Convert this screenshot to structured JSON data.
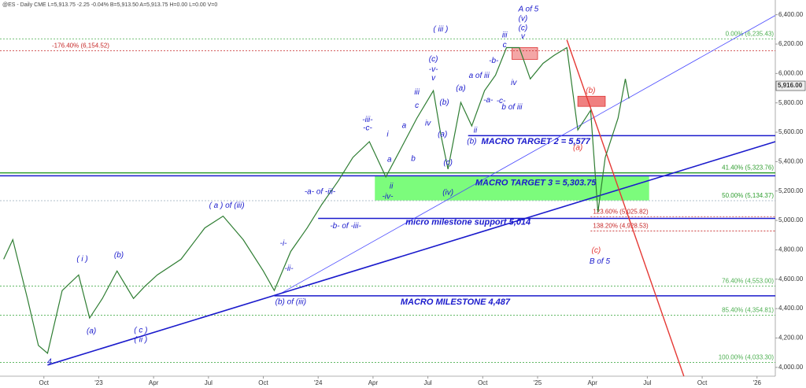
{
  "chart_data": {
    "type": "line",
    "header": "@ES - Daily CME  L=5,913.75 -2.25 -0.04% B=5,913.50 A=5,913.75 H=0.00 L=0.00 V=0",
    "x": [
      -2.2,
      -1.7,
      -0.9,
      -0.3,
      0.2,
      1.0,
      1.9,
      2.5,
      3.2,
      4.0,
      4.9,
      5.5,
      6.2,
      7.5,
      8.8,
      9.8,
      10.9,
      12.0,
      12.6,
      13.5,
      14.4,
      15.2,
      16.1,
      16.9,
      17.8,
      18.7,
      19.5,
      20.4,
      21.3,
      21.7,
      22.1,
      22.8,
      23.4,
      24.1,
      24.7,
      25.3,
      26.0,
      26.6,
      27.3,
      27.9,
      28.6,
      29.2,
      29.9,
      30.3,
      30.7,
      31.4,
      31.8,
      32.0
    ],
    "series": [
      {
        "name": "ES",
        "color": "#2e7d32",
        "values": [
          4736,
          4869,
          4469,
          4149,
          4096,
          4523,
          4629,
          4336,
          4469,
          4656,
          4469,
          4549,
          4629,
          4736,
          4949,
          5029,
          4869,
          4656,
          4523,
          4789,
          4949,
          5109,
          5269,
          5429,
          5536,
          5296,
          5483,
          5696,
          5883,
          5589,
          5349,
          5803,
          5643,
          5883,
          5989,
          6176,
          6176,
          5963,
          6069,
          6123,
          6176,
          5616,
          5749,
          5056,
          5429,
          5696,
          5963,
          5829
        ]
      }
    ],
    "last_price": {
      "value": 5916,
      "label": "5,916.00"
    },
    "xlim": [
      -2.4,
      40
    ],
    "ylim": [
      3940,
      6500
    ],
    "xticks": [
      {
        "value": 0,
        "label": "Oct"
      },
      {
        "value": 3,
        "label": "'23"
      },
      {
        "value": 6,
        "label": "Apr"
      },
      {
        "value": 9,
        "label": "Jul"
      },
      {
        "value": 12,
        "label": "Oct"
      },
      {
        "value": 15,
        "label": "'24"
      },
      {
        "value": 18,
        "label": "Apr"
      },
      {
        "value": 21,
        "label": "Jul"
      },
      {
        "value": 24,
        "label": "Oct"
      },
      {
        "value": 27,
        "label": "'25"
      },
      {
        "value": 30,
        "label": "Apr"
      },
      {
        "value": 33,
        "label": "Jul"
      },
      {
        "value": 36,
        "label": "Oct"
      },
      {
        "value": 39,
        "label": "'26"
      }
    ],
    "yticks": [
      {
        "value": 4000,
        "label": "4,000.00"
      },
      {
        "value": 4200,
        "label": "4,200.00"
      },
      {
        "value": 4400,
        "label": "4,400.00"
      },
      {
        "value": 4600,
        "label": "4,600.00"
      },
      {
        "value": 4800,
        "label": "4,800.00"
      },
      {
        "value": 5000,
        "label": "5,000.00"
      },
      {
        "value": 5200,
        "label": "5,200.00"
      },
      {
        "value": 5400,
        "label": "5,400.00"
      },
      {
        "value": 5600,
        "label": "5,600.00"
      },
      {
        "value": 5800,
        "label": "5,800.00"
      },
      {
        "value": 6000,
        "label": "6,000.00"
      },
      {
        "value": 6200,
        "label": "6,200.00"
      },
      {
        "value": 6400,
        "label": "6,400.00"
      }
    ],
    "zones": [
      {
        "x0": 18.1,
        "x1": 33.1,
        "y0": 5136,
        "y1": 5301,
        "color": "#7CFC7C"
      },
      {
        "x0": 25.6,
        "x1": 27.0,
        "y0": 6096,
        "y1": 6176,
        "color": "#f4a6a6"
      },
      {
        "x0": 29.2,
        "x1": 30.7,
        "y0": 5776,
        "y1": 5845,
        "color": "#f08080"
      }
    ],
    "levels": [
      {
        "value": 6235.43,
        "label": "0.00% (6,235.43)",
        "color": "#4caf50",
        "dash": true,
        "x0": -2.4,
        "side": "right"
      },
      {
        "value": 6154.52,
        "label": "-176.40% (6,154.52)",
        "color": "#c62828",
        "dash": true,
        "x0": -2.4,
        "side": "left"
      },
      {
        "value": 5577,
        "color": "#1a1acc",
        "dash": false,
        "x0": 23.2
      },
      {
        "value": 5323.76,
        "label": "41.40% (5,323.76)",
        "color": "#2e9d2e",
        "dash": false,
        "x0": -2.4,
        "side": "right"
      },
      {
        "value": 5303.75,
        "color": "#1a1acc",
        "dash": false,
        "x0": -2.4
      },
      {
        "value": 5134.37,
        "label": "50.00% (5,134.37)",
        "color": "#9ab",
        "dash": true,
        "x0": -2.4,
        "side": "right"
      },
      {
        "value": 5025.82,
        "label": "123.60% (5,025.82)",
        "color": "#c62828",
        "dash": true,
        "x0": 29.9,
        "side": "mid"
      },
      {
        "value": 5014,
        "color": "#1a1acc",
        "dash": false,
        "x0": 15.0
      },
      {
        "value": 4928.53,
        "label": "138.20% (4,928.53)",
        "color": "#c62828",
        "dash": true,
        "x0": 29.9,
        "side": "mid"
      },
      {
        "value": 4553,
        "label": "76.40% (4,553.00)",
        "color": "#4caf50",
        "dash": true,
        "x0": -2.4,
        "side": "right"
      },
      {
        "value": 4487,
        "color": "#1a1acc",
        "dash": false,
        "x0": 12.6
      },
      {
        "value": 4354.81,
        "label": "85.40% (4,354.81)",
        "color": "#4caf50",
        "dash": true,
        "x0": -2.4,
        "side": "right"
      },
      {
        "value": 4033.3,
        "label": "100.00% (4,033.30)",
        "color": "#4caf50",
        "dash": true,
        "x0": -2.4,
        "side": "right"
      }
    ],
    "trendlines": [
      {
        "x0": 12.85,
        "y0": 4496,
        "x1": 40,
        "y1": 6395,
        "color": "#4a4aff",
        "width": 0.8
      },
      {
        "x0": 0.2,
        "y0": 4016,
        "x1": 40,
        "y1": 5536,
        "color": "#1a1acc",
        "width": 1.6
      },
      {
        "x0": 28.6,
        "y0": 6229,
        "x1": 35.0,
        "y1": 3940,
        "color": "#e53935",
        "width": 1.4
      }
    ],
    "annotations": [
      {
        "text": "4",
        "x": 0.3,
        "y": 4037,
        "color": "#1a1acc"
      },
      {
        "text": "( i )",
        "x": 2.1,
        "y": 4736,
        "color": "#1a1acc"
      },
      {
        "text": "(a)",
        "x": 2.6,
        "y": 4245,
        "color": "#1a1acc"
      },
      {
        "text": "(b)",
        "x": 4.1,
        "y": 4763,
        "color": "#1a1acc"
      },
      {
        "text": "( c )",
        "x": 5.3,
        "y": 4251,
        "color": "#1a1acc"
      },
      {
        "text": "( ii )",
        "x": 5.3,
        "y": 4187,
        "color": "#1a1acc"
      },
      {
        "text": "( a ) of (iii)",
        "x": 10.0,
        "y": 5099,
        "color": "#1a1acc"
      },
      {
        "text": "-i-",
        "x": 13.1,
        "y": 4843,
        "color": "#1a1acc"
      },
      {
        "text": "-ii-",
        "x": 13.4,
        "y": 4672,
        "color": "#1a1acc"
      },
      {
        "text": "(b) of (iii)",
        "x": 13.5,
        "y": 4443,
        "color": "#1a1acc"
      },
      {
        "text": "-a- of -iii-",
        "x": 15.1,
        "y": 5195,
        "color": "#1a1acc"
      },
      {
        "text": "-b- of -iii-",
        "x": 16.5,
        "y": 4960,
        "color": "#1a1acc"
      },
      {
        "text": "-iii-",
        "x": 17.7,
        "y": 5685,
        "color": "#1a1acc"
      },
      {
        "text": "-c-",
        "x": 17.7,
        "y": 5627,
        "color": "#1a1acc"
      },
      {
        "text": "i",
        "x": 18.8,
        "y": 5584,
        "color": "#1a1acc"
      },
      {
        "text": "a",
        "x": 18.9,
        "y": 5413,
        "color": "#1a1acc"
      },
      {
        "text": "ii",
        "x": 19.0,
        "y": 5232,
        "color": "#1a1acc"
      },
      {
        "text": "-iv-",
        "x": 18.8,
        "y": 5163,
        "color": "#1a1acc"
      },
      {
        "text": "a",
        "x": 19.7,
        "y": 5643,
        "color": "#1a1acc"
      },
      {
        "text": "b",
        "x": 20.2,
        "y": 5419,
        "color": "#1a1acc"
      },
      {
        "text": "iii",
        "x": 20.4,
        "y": 5872,
        "color": "#1a1acc"
      },
      {
        "text": "c",
        "x": 20.4,
        "y": 5781,
        "color": "#1a1acc"
      },
      {
        "text": "iv",
        "x": 21.0,
        "y": 5659,
        "color": "#1a1acc"
      },
      {
        "text": "( iii )",
        "x": 21.7,
        "y": 6299,
        "color": "#1a1acc"
      },
      {
        "text": "(c)",
        "x": 21.3,
        "y": 6096,
        "color": "#1a1acc"
      },
      {
        "text": "-v-",
        "x": 21.3,
        "y": 6027,
        "color": "#1a1acc"
      },
      {
        "text": "v",
        "x": 21.3,
        "y": 5968,
        "color": "#1a1acc"
      },
      {
        "text": "(a)",
        "x": 21.8,
        "y": 5584,
        "color": "#1a1acc"
      },
      {
        "text": "(b)",
        "x": 21.9,
        "y": 5803,
        "color": "#1a1acc"
      },
      {
        "text": "(c)",
        "x": 22.1,
        "y": 5392,
        "color": "#1a1acc"
      },
      {
        "text": "(iv)",
        "x": 22.1,
        "y": 5189,
        "color": "#1a1acc"
      },
      {
        "text": "(a)",
        "x": 22.8,
        "y": 5899,
        "color": "#1a1acc"
      },
      {
        "text": "(b)",
        "x": 23.4,
        "y": 5536,
        "color": "#1a1acc"
      },
      {
        "text": "ii",
        "x": 23.6,
        "y": 5611,
        "color": "#1a1acc"
      },
      {
        "text": "a of iii",
        "x": 23.8,
        "y": 5984,
        "color": "#1a1acc"
      },
      {
        "text": "-a-",
        "x": 24.3,
        "y": 5819,
        "color": "#1a1acc"
      },
      {
        "text": "-b-",
        "x": 24.6,
        "y": 6085,
        "color": "#1a1acc"
      },
      {
        "text": "-c-",
        "x": 25.0,
        "y": 5813,
        "color": "#1a1acc"
      },
      {
        "text": "b of iii",
        "x": 25.6,
        "y": 5771,
        "color": "#1a1acc"
      },
      {
        "text": "iii",
        "x": 25.2,
        "y": 6261,
        "color": "#1a1acc"
      },
      {
        "text": "c",
        "x": 25.2,
        "y": 6192,
        "color": "#1a1acc"
      },
      {
        "text": "iv",
        "x": 25.7,
        "y": 5936,
        "color": "#1a1acc"
      },
      {
        "text": "A of 5",
        "x": 26.5,
        "y": 6437,
        "color": "#1a1acc"
      },
      {
        "text": "(v)",
        "x": 26.2,
        "y": 6373,
        "color": "#1a1acc"
      },
      {
        "text": "(c)",
        "x": 26.2,
        "y": 6309,
        "color": "#1a1acc"
      },
      {
        "text": "v",
        "x": 26.2,
        "y": 6251,
        "color": "#1a1acc"
      },
      {
        "text": "(b)",
        "x": 29.9,
        "y": 5883,
        "color": "#e53935"
      },
      {
        "text": "(a)",
        "x": 29.2,
        "y": 5493,
        "color": "#e53935"
      },
      {
        "text": "(c)",
        "x": 30.2,
        "y": 4795,
        "color": "#e53935"
      },
      {
        "text": "B of 5",
        "x": 30.4,
        "y": 4720,
        "color": "#1a1acc"
      }
    ],
    "callouts": [
      {
        "text": "MACRO TARGET 2 = 5,577",
        "x": 26.9,
        "y": 5536
      },
      {
        "text": "MACRO TARGET 3 = 5,303.75",
        "x": 26.9,
        "y": 5253
      },
      {
        "text": "micro milestone support 5,014",
        "x": 23.2,
        "y": 4987
      },
      {
        "text": "MACRO MILESTONE 4,487",
        "x": 22.5,
        "y": 4443
      }
    ]
  }
}
